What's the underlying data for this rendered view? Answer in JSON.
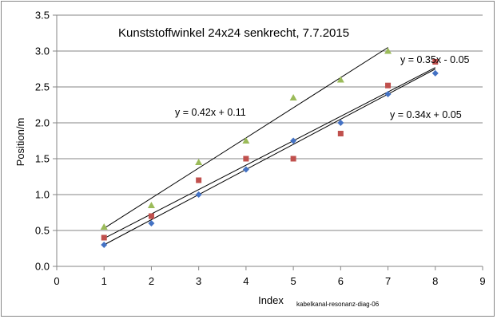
{
  "chart_data": {
    "type": "scatter",
    "title": "Kunststoffwinkel 24x24 senkrecht, 7.7.2015",
    "xlabel": "Index",
    "ylabel": "Position/m",
    "xlim": [
      0,
      9
    ],
    "ylim": [
      0,
      3.5
    ],
    "xticks": [
      "0",
      "1",
      "2",
      "3",
      "4",
      "5",
      "6",
      "7",
      "8",
      "9"
    ],
    "yticks": [
      "0.0",
      "0.5",
      "1.0",
      "1.5",
      "2.0",
      "2.5",
      "3.0",
      "3.5"
    ],
    "grid": "horizontal",
    "legend": "none",
    "series": [
      {
        "marker": "diamond",
        "color": "#4472C4",
        "x": [
          1,
          2,
          3,
          4,
          5,
          6,
          7,
          8
        ],
        "y": [
          0.3,
          0.6,
          1.0,
          1.35,
          1.75,
          2.0,
          2.4,
          2.69
        ]
      },
      {
        "marker": "square",
        "color": "#C0504D",
        "x": [
          1,
          2,
          3,
          4,
          5,
          6,
          7,
          8
        ],
        "y": [
          0.4,
          0.7,
          1.2,
          1.5,
          1.5,
          1.85,
          2.52,
          2.85
        ]
      },
      {
        "marker": "triangle",
        "color": "#9BBB59",
        "x": [
          1,
          2,
          3,
          4,
          5,
          6,
          7
        ],
        "y": [
          0.55,
          0.85,
          1.45,
          1.75,
          2.35,
          2.6,
          3.0
        ]
      }
    ],
    "trendlines": [
      {
        "equation": "y = 0.42x + 0.11",
        "slope": 0.42,
        "intercept": 0.11,
        "x_range": [
          1,
          7
        ]
      },
      {
        "equation": "y = 0.35x - 0.05",
        "slope": 0.35,
        "intercept": -0.05,
        "x_range": [
          1,
          8
        ]
      },
      {
        "equation": "y = 0.34x + 0.05",
        "slope": 0.34,
        "intercept": 0.05,
        "x_range": [
          1,
          8
        ]
      }
    ],
    "annotations": [
      "kabelkanal-resonanz-diag-06"
    ]
  }
}
